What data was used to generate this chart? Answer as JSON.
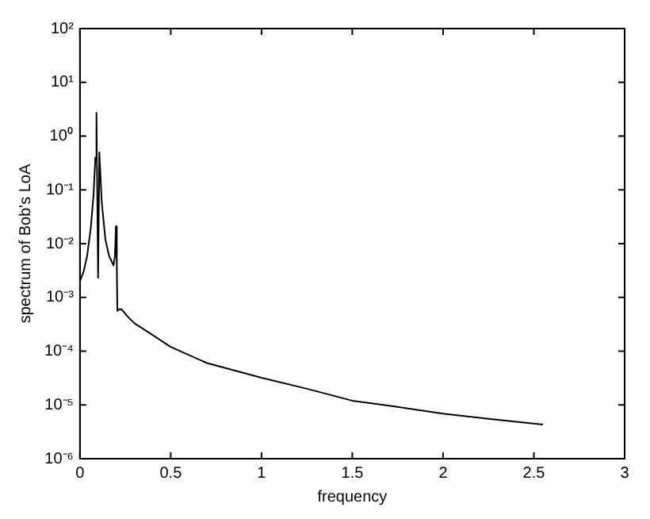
{
  "chart_data": {
    "type": "line",
    "xlabel": "frequency",
    "ylabel": "spectrum of Bob's LoA",
    "log": "y",
    "grid": false,
    "legend": false,
    "marker": "none",
    "line_style": "solid",
    "xlim": [
      0,
      3
    ],
    "xticks": [
      0,
      0.5,
      1,
      1.5,
      2,
      2.5,
      3
    ],
    "ylim": [
      1e-06,
      100
    ],
    "yticks": [
      {
        "value": 1e-06,
        "label": "10⁻⁶"
      },
      {
        "value": 1e-05,
        "label": "10⁻⁵"
      },
      {
        "value": 0.0001,
        "label": "10⁻⁴"
      },
      {
        "value": 0.001,
        "label": "10⁻³"
      },
      {
        "value": 0.01,
        "label": "10⁻²"
      },
      {
        "value": 0.1,
        "label": "10⁻¹"
      },
      {
        "value": 1,
        "label": "10⁰"
      },
      {
        "value": 10,
        "label": "10¹"
      },
      {
        "value": 100,
        "label": "10²"
      }
    ],
    "series": [
      {
        "color": "#000000",
        "x": [
          0,
          0.02,
          0.04,
          0.06,
          0.075,
          0.085,
          0.091,
          0.1,
          0.107,
          0.12,
          0.14,
          0.16,
          0.185,
          0.193,
          0.198,
          0.203,
          0.206,
          0.215,
          0.23,
          0.26,
          0.3,
          0.4,
          0.5,
          0.7,
          1,
          1.25,
          1.5,
          1.75,
          2,
          2.25,
          2.55
        ],
        "values": [
          0.002,
          0.003,
          0.006,
          0.02,
          0.08,
          0.4,
          2.7,
          0.0023,
          0.5,
          0.06,
          0.012,
          0.006,
          0.0039,
          0.006,
          0.021,
          0.004,
          0.00056,
          0.0006,
          0.0006,
          0.00045,
          0.00033,
          0.0002,
          0.00012,
          6e-05,
          3.2e-05,
          2e-05,
          1.2e-05,
          9.2e-06,
          6.9e-06,
          5.5e-06,
          4.3e-06
        ]
      }
    ]
  }
}
